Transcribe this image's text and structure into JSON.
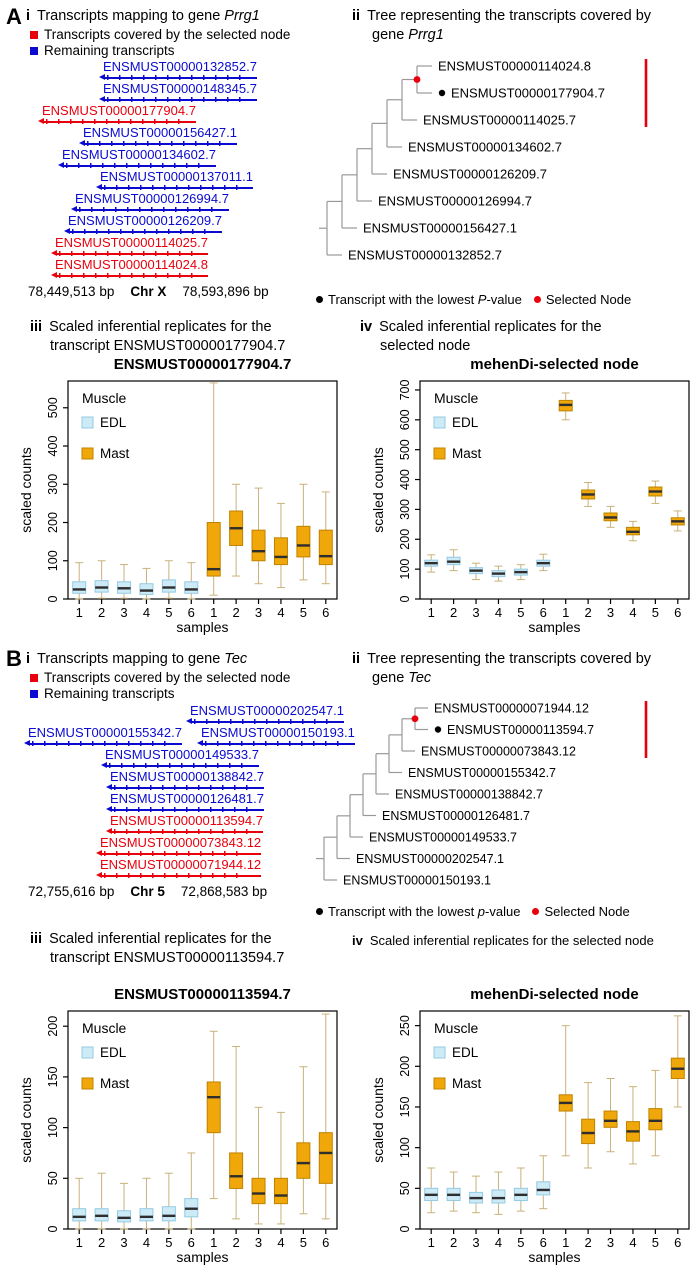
{
  "colors": {
    "covered": "#e8000d",
    "remaining": "#0a0ad0",
    "tree_line": "#999999",
    "selected_node": "#e8000d",
    "lowest_dot": "#000000",
    "edl_fill": "#cdeaf7",
    "edl_stroke": "#93cbe4",
    "mast_fill": "#f0a70a",
    "mast_stroke": "#bf8300",
    "whisker": "#c9b279",
    "median": "#2e2e2e"
  },
  "panelA": {
    "label": "A",
    "i": {
      "num": "i",
      "title": "Transcripts mapping to gene",
      "gene": "Prrg1",
      "legend": [
        {
          "type": "covered",
          "label": "Transcripts covered by the selected node"
        },
        {
          "type": "remaining",
          "label": "Remaining transcripts"
        }
      ],
      "rows": [
        [
          {
            "name": "ENSMUST00000132852.7",
            "type": "remaining",
            "indent": 73
          }
        ],
        [
          {
            "name": "ENSMUST00000148345.7",
            "type": "remaining",
            "indent": 73
          }
        ],
        [
          {
            "name": "ENSMUST00000177904.7",
            "type": "covered",
            "indent": 12
          }
        ],
        [
          {
            "name": "ENSMUST00000156427.1",
            "type": "remaining",
            "indent": 53
          }
        ],
        [
          {
            "name": "ENSMUST00000134602.7",
            "type": "remaining",
            "indent": 32
          }
        ],
        [
          {
            "name": "ENSMUST00000137011.1",
            "type": "remaining",
            "indent": 70
          }
        ],
        [
          {
            "name": "ENSMUST00000126994.7",
            "type": "remaining",
            "indent": 45
          }
        ],
        [
          {
            "name": "ENSMUST00000126209.7",
            "type": "remaining",
            "indent": 38
          }
        ],
        [
          {
            "name": "ENSMUST00000114025.7",
            "type": "covered",
            "indent": 25
          }
        ],
        [
          {
            "name": "ENSMUST00000114024.8",
            "type": "covered",
            "indent": 25
          }
        ]
      ],
      "axis": {
        "start": "78,449,513 bp",
        "chrom": "Chr X",
        "end": "78,593,896 bp"
      }
    },
    "ii": {
      "num": "ii",
      "title": "Tree representing the transcripts covered by",
      "line2_prefix": "gene",
      "gene": "Prrg1",
      "tree": {
        "leaves": [
          "ENSMUST00000114024.8",
          "ENSMUST00000177904.7",
          "ENSMUST00000114025.7",
          "ENSMUST00000134602.7",
          "ENSMUST00000126209.7",
          "ENSMUST00000126994.7",
          "ENSMUST00000156427.1",
          "ENSMUST00000132852.7"
        ],
        "lowest_index": 1,
        "red_bar_span": [
          0,
          2
        ]
      },
      "legend": {
        "dot_label_pre": "Transcript with the lowest ",
        "pvar": "P",
        "dot_label_post": "-value",
        "selected_label": "Selected Node"
      }
    },
    "iii": {
      "num": "iii",
      "line1": "Scaled inferential replicates for the",
      "line2": "transcript ENSMUST00000177904.7"
    },
    "iv": {
      "num": "iv",
      "line1": "Scaled inferential replicates for the",
      "line2": "selected node"
    }
  },
  "panelB": {
    "label": "B",
    "i": {
      "num": "i",
      "title": "Transcripts mapping to gene",
      "gene": "Tec",
      "legend": [
        {
          "type": "covered",
          "label": "Transcripts covered by the selected node"
        },
        {
          "type": "remaining",
          "label": "Remaining transcripts"
        }
      ],
      "rows": [
        [
          {
            "name": "ENSMUST00000202547.1",
            "type": "remaining",
            "indent": 162
          }
        ],
        [
          {
            "name": "ENSMUST00000155342.7",
            "type": "remaining",
            "indent": 0
          },
          {
            "name": "ENSMUST00000150193.1",
            "type": "remaining",
            "indent": 19
          }
        ],
        [
          {
            "name": "ENSMUST00000149533.7",
            "type": "remaining",
            "indent": 77
          }
        ],
        [
          {
            "name": "ENSMUST00000138842.7",
            "type": "remaining",
            "indent": 82
          }
        ],
        [
          {
            "name": "ENSMUST00000126481.7",
            "type": "remaining",
            "indent": 82
          }
        ],
        [
          {
            "name": "ENSMUST00000113594.7",
            "type": "covered",
            "indent": 82
          }
        ],
        [
          {
            "name": "ENSMUST00000073843.12",
            "type": "covered",
            "indent": 72
          }
        ],
        [
          {
            "name": "ENSMUST00000071944.12",
            "type": "covered",
            "indent": 72
          }
        ]
      ],
      "axis": {
        "start": "72,755,616 bp",
        "chrom": "Chr 5",
        "end": "72,868,583 bp"
      }
    },
    "ii": {
      "num": "ii",
      "title": "Tree representing the transcripts covered by",
      "line2_prefix": "gene",
      "gene": "Tec",
      "tree": {
        "leaves": [
          "ENSMUST00000071944.12",
          "ENSMUST00000113594.7",
          "ENSMUST00000073843.12",
          "ENSMUST00000155342.7",
          "ENSMUST00000138842.7",
          "ENSMUST00000126481.7",
          "ENSMUST00000149533.7",
          "ENSMUST00000202547.1",
          "ENSMUST00000150193.1"
        ],
        "lowest_index": 1,
        "red_bar_span": [
          0,
          2
        ]
      },
      "legend": {
        "dot_label_pre": "Transcript with the lowest ",
        "pvar": "p",
        "dot_label_post": "-value",
        "selected_label": "Selected Node"
      }
    },
    "iii": {
      "num": "iii",
      "line1": "Scaled inferential replicates for the",
      "line2": "transcript ENSMUST00000113594.7"
    },
    "iv": {
      "num": "iv",
      "line1": "Scaled inferential replicates for the selected node",
      "line2": ""
    }
  },
  "chart_data": [
    {
      "id": "a_iii",
      "type": "box",
      "title": "ENSMUST00000177904.7",
      "xlabel": "samples",
      "ylabel": "scaled counts",
      "ylim": [
        0,
        570
      ],
      "yticks": [
        0,
        100,
        200,
        300,
        400,
        500
      ],
      "categories": [
        "1",
        "2",
        "3",
        "4",
        "5",
        "6",
        "1",
        "2",
        "3",
        "4",
        "5",
        "6"
      ],
      "legend": {
        "title": "Muscle",
        "entries": [
          "EDL",
          "Mast"
        ]
      },
      "series": [
        {
          "name": "EDL",
          "boxes": [
            [
              0,
              15,
              25,
              45,
              95
            ],
            [
              2,
              18,
              30,
              48,
              100
            ],
            [
              2,
              15,
              28,
              45,
              90
            ],
            [
              0,
              12,
              22,
              40,
              80
            ],
            [
              2,
              18,
              30,
              50,
              100
            ],
            [
              0,
              15,
              25,
              45,
              95
            ]
          ]
        },
        {
          "name": "Mast",
          "boxes": [
            [
              10,
              60,
              78,
              200,
              565
            ],
            [
              60,
              140,
              185,
              230,
              300
            ],
            [
              40,
              100,
              125,
              180,
              290
            ],
            [
              30,
              90,
              110,
              160,
              250
            ],
            [
              50,
              110,
              140,
              190,
              300
            ],
            [
              40,
              90,
              112,
              180,
              280
            ]
          ]
        }
      ]
    },
    {
      "id": "a_iv",
      "type": "box",
      "title": "mehenDi-selected node",
      "xlabel": "samples",
      "ylabel": "scaled counts",
      "ylim": [
        0,
        730
      ],
      "yticks": [
        0,
        100,
        200,
        300,
        400,
        500,
        600,
        700
      ],
      "categories": [
        "1",
        "2",
        "3",
        "4",
        "5",
        "6",
        "1",
        "2",
        "3",
        "4",
        "5",
        "6"
      ],
      "legend": {
        "title": "Muscle",
        "entries": [
          "EDL",
          "Mast"
        ]
      },
      "series": [
        {
          "name": "EDL",
          "boxes": [
            [
              90,
              110,
              120,
              130,
              148
            ],
            [
              95,
              115,
              125,
              140,
              165
            ],
            [
              65,
              85,
              95,
              105,
              120
            ],
            [
              60,
              75,
              85,
              95,
              110
            ],
            [
              65,
              80,
              90,
              100,
              115
            ],
            [
              95,
              110,
              120,
              130,
              150
            ]
          ]
        },
        {
          "name": "Mast",
          "boxes": [
            [
              600,
              630,
              650,
              665,
              690
            ],
            [
              310,
              335,
              350,
              365,
              390
            ],
            [
              240,
              262,
              273,
              288,
              310
            ],
            [
              195,
              215,
              225,
              240,
              260
            ],
            [
              320,
              345,
              360,
              375,
              395
            ],
            [
              228,
              248,
              260,
              272,
              295
            ]
          ]
        }
      ]
    },
    {
      "id": "b_iii",
      "type": "box",
      "title": "ENSMUST00000113594.7",
      "xlabel": "samples",
      "ylabel": "scaled counts",
      "ylim": [
        0,
        215
      ],
      "yticks": [
        0,
        50,
        100,
        150,
        200
      ],
      "categories": [
        "1",
        "2",
        "3",
        "4",
        "5",
        "6",
        "1",
        "2",
        "3",
        "4",
        "5",
        "6"
      ],
      "legend": {
        "title": "Muscle",
        "entries": [
          "EDL",
          "Mast"
        ]
      },
      "series": [
        {
          "name": "EDL",
          "boxes": [
            [
              0,
              8,
              12,
              20,
              50
            ],
            [
              0,
              8,
              13,
              20,
              55
            ],
            [
              0,
              7,
              11,
              18,
              45
            ],
            [
              0,
              8,
              12,
              20,
              50
            ],
            [
              0,
              8,
              13,
              22,
              55
            ],
            [
              0,
              12,
              20,
              30,
              75
            ]
          ]
        },
        {
          "name": "Mast",
          "boxes": [
            [
              30,
              95,
              130,
              145,
              195
            ],
            [
              10,
              40,
              52,
              75,
              180
            ],
            [
              5,
              25,
              35,
              50,
              120
            ],
            [
              5,
              25,
              33,
              50,
              115
            ],
            [
              15,
              50,
              65,
              85,
              160
            ],
            [
              10,
              45,
              75,
              95,
              212
            ]
          ]
        }
      ]
    },
    {
      "id": "b_iv",
      "type": "box",
      "title": "mehenDi-selected node",
      "xlabel": "samples",
      "ylabel": "scaled counts",
      "ylim": [
        0,
        268
      ],
      "yticks": [
        0,
        50,
        100,
        150,
        200,
        250
      ],
      "categories": [
        "1",
        "2",
        "3",
        "4",
        "5",
        "6",
        "1",
        "2",
        "3",
        "4",
        "5",
        "6"
      ],
      "legend": {
        "title": "Muscle",
        "entries": [
          "EDL",
          "Mast"
        ]
      },
      "series": [
        {
          "name": "EDL",
          "boxes": [
            [
              20,
              35,
              42,
              50,
              75
            ],
            [
              22,
              35,
              42,
              50,
              70
            ],
            [
              20,
              32,
              38,
              45,
              65
            ],
            [
              18,
              32,
              38,
              48,
              70
            ],
            [
              22,
              35,
              42,
              50,
              75
            ],
            [
              25,
              42,
              48,
              58,
              90
            ]
          ]
        },
        {
          "name": "Mast",
          "boxes": [
            [
              90,
              145,
              155,
              165,
              250
            ],
            [
              75,
              105,
              118,
              135,
              180
            ],
            [
              95,
              125,
              133,
              145,
              185
            ],
            [
              80,
              108,
              120,
              132,
              175
            ],
            [
              90,
              122,
              133,
              148,
              195
            ],
            [
              150,
              185,
              197,
              210,
              262
            ]
          ]
        }
      ]
    }
  ]
}
